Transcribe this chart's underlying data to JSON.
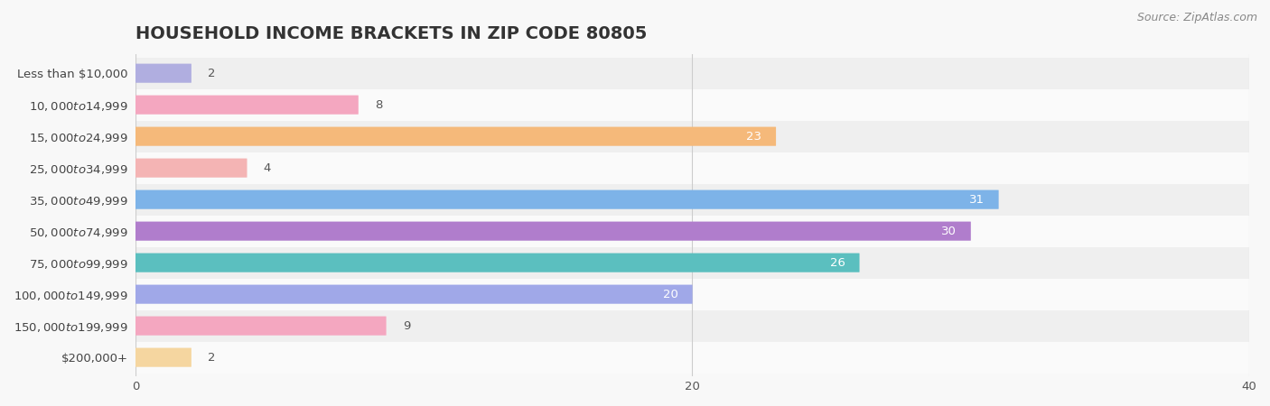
{
  "title": "HOUSEHOLD INCOME BRACKETS IN ZIP CODE 80805",
  "source": "Source: ZipAtlas.com",
  "categories": [
    "Less than $10,000",
    "$10,000 to $14,999",
    "$15,000 to $24,999",
    "$25,000 to $34,999",
    "$35,000 to $49,999",
    "$50,000 to $74,999",
    "$75,000 to $99,999",
    "$100,000 to $149,999",
    "$150,000 to $199,999",
    "$200,000+"
  ],
  "values": [
    2,
    8,
    23,
    4,
    31,
    30,
    26,
    20,
    9,
    2
  ],
  "colors": [
    "#b0aee0",
    "#f4a7c0",
    "#f5b97a",
    "#f4b4b4",
    "#7db3e8",
    "#b07dcc",
    "#5bbfbf",
    "#a0a8e8",
    "#f4a7c0",
    "#f5d6a0"
  ],
  "xlim": [
    0,
    40
  ],
  "xticks": [
    0,
    20,
    40
  ],
  "label_color_outside": "#555555",
  "label_color_inside": "#ffffff",
  "background_color": "#f8f8f8",
  "row_bg_even": "#efefef",
  "row_bg_odd": "#fafafa",
  "title_fontsize": 14,
  "label_fontsize": 9.5,
  "value_fontsize": 9.5,
  "source_fontsize": 9,
  "bar_height": 0.58
}
